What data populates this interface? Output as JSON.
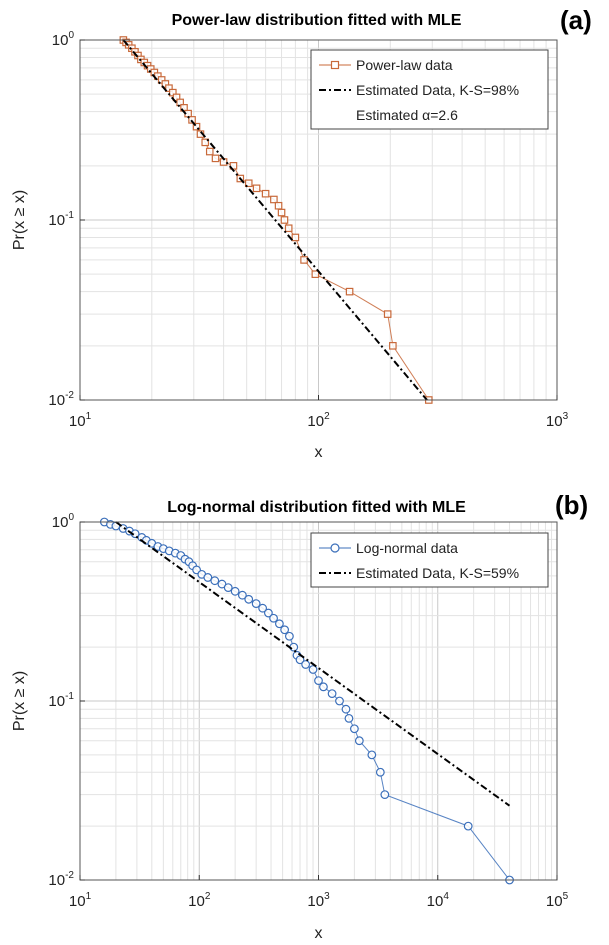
{
  "chart_data": [
    {
      "type": "scatter",
      "panel_label": "(a)",
      "title": "Power-law distribution fitted with MLE",
      "xlabel": "x",
      "ylabel": "Pr(x ≥ x)",
      "xscale": "log",
      "yscale": "log",
      "xlim": [
        10,
        1000
      ],
      "ylim": [
        0.01,
        1
      ],
      "grid": true,
      "legend_position": "top-right",
      "x_ticks": [
        {
          "base": "10",
          "exp": "1"
        },
        {
          "base": "10",
          "exp": "2"
        },
        {
          "base": "10",
          "exp": "3"
        }
      ],
      "y_ticks": [
        {
          "base": "10",
          "exp": "-2"
        },
        {
          "base": "10",
          "exp": "-1"
        },
        {
          "base": "10",
          "exp": "0"
        }
      ],
      "legend": [
        {
          "label": "Power-law data"
        },
        {
          "label": "Estimated Data, K-S=98%"
        },
        {
          "label": "Estimated α=2.6"
        }
      ],
      "series": [
        {
          "name": "Power-law data",
          "style": "line+square-markers",
          "color": "#c8693a",
          "points": [
            [
              15.2,
              1.0
            ],
            [
              15.6,
              0.97
            ],
            [
              16.0,
              0.94
            ],
            [
              16.5,
              0.9
            ],
            [
              17.0,
              0.86
            ],
            [
              17.5,
              0.82
            ],
            [
              18.0,
              0.78
            ],
            [
              18.6,
              0.75
            ],
            [
              19.2,
              0.72
            ],
            [
              19.8,
              0.69
            ],
            [
              20.5,
              0.66
            ],
            [
              21.2,
              0.63
            ],
            [
              22.0,
              0.6
            ],
            [
              22.8,
              0.57
            ],
            [
              23.6,
              0.54
            ],
            [
              24.5,
              0.51
            ],
            [
              25.4,
              0.48
            ],
            [
              26.3,
              0.45
            ],
            [
              27.3,
              0.42
            ],
            [
              28.4,
              0.39
            ],
            [
              29.5,
              0.36
            ],
            [
              30.8,
              0.33
            ],
            [
              32.0,
              0.3
            ],
            [
              33.5,
              0.27
            ],
            [
              35.0,
              0.24
            ],
            [
              37.0,
              0.22
            ],
            [
              40.0,
              0.21
            ],
            [
              44.0,
              0.2
            ],
            [
              47.0,
              0.17
            ],
            [
              51.0,
              0.16
            ],
            [
              55.0,
              0.15
            ],
            [
              60.0,
              0.14
            ],
            [
              65.0,
              0.13
            ],
            [
              68.0,
              0.12
            ],
            [
              70.0,
              0.11
            ],
            [
              72.0,
              0.1
            ],
            [
              75.0,
              0.09
            ],
            [
              80.0,
              0.08
            ],
            [
              87.0,
              0.06
            ],
            [
              97.0,
              0.05
            ],
            [
              135.0,
              0.04
            ],
            [
              195.0,
              0.03
            ],
            [
              205.0,
              0.02
            ],
            [
              290.0,
              0.01
            ]
          ]
        },
        {
          "name": "Estimated Data, K-S=98%",
          "style": "dash-dot",
          "color": "#000000",
          "points": [
            [
              15.2,
              1.0
            ],
            [
              285.0,
              0.01
            ]
          ]
        }
      ]
    },
    {
      "type": "scatter",
      "panel_label": "(b)",
      "title": "Log-normal distribution fitted with MLE",
      "xlabel": "x",
      "ylabel": "Pr(x ≥ x)",
      "xscale": "log",
      "yscale": "log",
      "xlim": [
        10,
        100000
      ],
      "ylim": [
        0.01,
        1
      ],
      "grid": true,
      "legend_position": "top-right",
      "x_ticks": [
        {
          "base": "10",
          "exp": "1"
        },
        {
          "base": "10",
          "exp": "2"
        },
        {
          "base": "10",
          "exp": "3"
        },
        {
          "base": "10",
          "exp": "4"
        },
        {
          "base": "10",
          "exp": "5"
        }
      ],
      "y_ticks": [
        {
          "base": "10",
          "exp": "-2"
        },
        {
          "base": "10",
          "exp": "-1"
        },
        {
          "base": "10",
          "exp": "0"
        }
      ],
      "legend": [
        {
          "label": "Log-normal data"
        },
        {
          "label": "Estimated Data, K-S=59%"
        }
      ],
      "series": [
        {
          "name": "Log-normal data",
          "style": "line+circle-markers",
          "color": "#3b6fba",
          "points": [
            [
              16.0,
              1.0
            ],
            [
              18.0,
              0.97
            ],
            [
              20.0,
              0.95
            ],
            [
              23.0,
              0.92
            ],
            [
              26.0,
              0.89
            ],
            [
              29.0,
              0.86
            ],
            [
              33.0,
              0.82
            ],
            [
              36.0,
              0.79
            ],
            [
              40.0,
              0.76
            ],
            [
              45.0,
              0.73
            ],
            [
              50.0,
              0.71
            ],
            [
              56.0,
              0.69
            ],
            [
              63.0,
              0.67
            ],
            [
              70.0,
              0.65
            ],
            [
              76.0,
              0.62
            ],
            [
              82.0,
              0.6
            ],
            [
              88.0,
              0.57
            ],
            [
              95.0,
              0.54
            ],
            [
              105.0,
              0.51
            ],
            [
              118.0,
              0.49
            ],
            [
              135.0,
              0.47
            ],
            [
              155.0,
              0.45
            ],
            [
              175.0,
              0.43
            ],
            [
              200.0,
              0.41
            ],
            [
              230.0,
              0.39
            ],
            [
              260.0,
              0.37
            ],
            [
              300.0,
              0.35
            ],
            [
              340.0,
              0.33
            ],
            [
              380.0,
              0.31
            ],
            [
              420.0,
              0.29
            ],
            [
              470.0,
              0.27
            ],
            [
              520.0,
              0.25
            ],
            [
              570.0,
              0.23
            ],
            [
              620.0,
              0.2
            ],
            [
              660.0,
              0.18
            ],
            [
              700.0,
              0.17
            ],
            [
              780.0,
              0.16
            ],
            [
              900.0,
              0.15
            ],
            [
              1000.0,
              0.13
            ],
            [
              1100.0,
              0.12
            ],
            [
              1300.0,
              0.11
            ],
            [
              1500.0,
              0.1
            ],
            [
              1700.0,
              0.09
            ],
            [
              1800.0,
              0.08
            ],
            [
              2000.0,
              0.07
            ],
            [
              2200.0,
              0.06
            ],
            [
              2800.0,
              0.05
            ],
            [
              3300.0,
              0.04
            ],
            [
              3600.0,
              0.03
            ],
            [
              18000.0,
              0.02
            ],
            [
              40000.0,
              0.01
            ]
          ]
        },
        {
          "name": "Estimated Data, K-S=59%",
          "style": "dash-dot",
          "color": "#000000",
          "points": [
            [
              20.0,
              1.0
            ],
            [
              40000.0,
              0.026
            ]
          ]
        }
      ]
    }
  ]
}
